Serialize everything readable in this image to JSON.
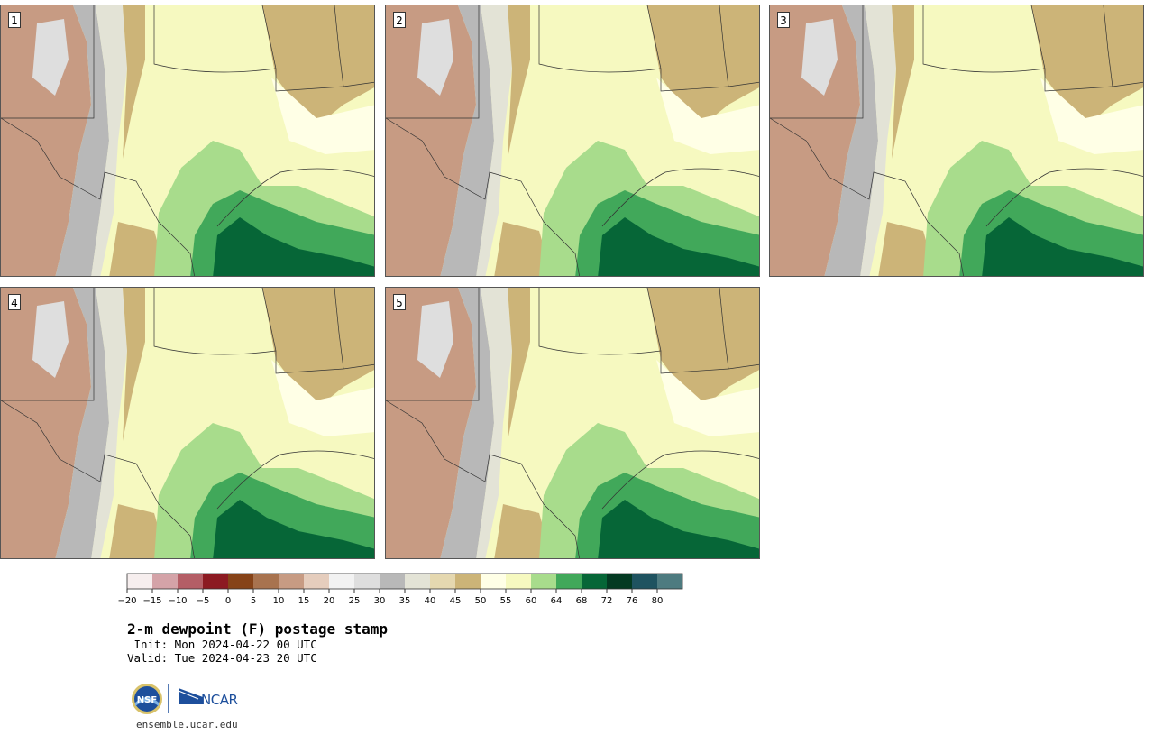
{
  "panels": [
    {
      "label": "1"
    },
    {
      "label": "2"
    },
    {
      "label": "3"
    },
    {
      "label": "4"
    },
    {
      "label": "5"
    }
  ],
  "colorbar": {
    "colors": [
      "#f6eeee",
      "#d4a3a8",
      "#b45e66",
      "#8c1a22",
      "#864318",
      "#a8734f",
      "#c79b83",
      "#e5cdbd",
      "#f2f2f2",
      "#dedede",
      "#b8b8b8",
      "#e3e3d6",
      "#e5d8b0",
      "#ccb478",
      "#ffffe6",
      "#f6f9c0",
      "#a8dc8c",
      "#41a85a",
      "#066637",
      "#043a22",
      "#1f5360",
      "#4e7b80"
    ],
    "ticks": [
      "-20",
      "-15",
      "-10",
      "-5",
      "0",
      "5",
      "10",
      "15",
      "20",
      "25",
      "30",
      "35",
      "40",
      "45",
      "50",
      "55",
      "60",
      "64",
      "68",
      "72",
      "76",
      "80"
    ]
  },
  "title": "2-m dewpoint (F) postage stamp",
  "init": " Init: Mon 2024-04-22 00 UTC",
  "valid": "Valid: Tue 2024-04-23 20 UTC",
  "logos": {
    "nsf": "NSF",
    "ncar": "NCAR"
  },
  "website": "ensemble.ucar.edu"
}
